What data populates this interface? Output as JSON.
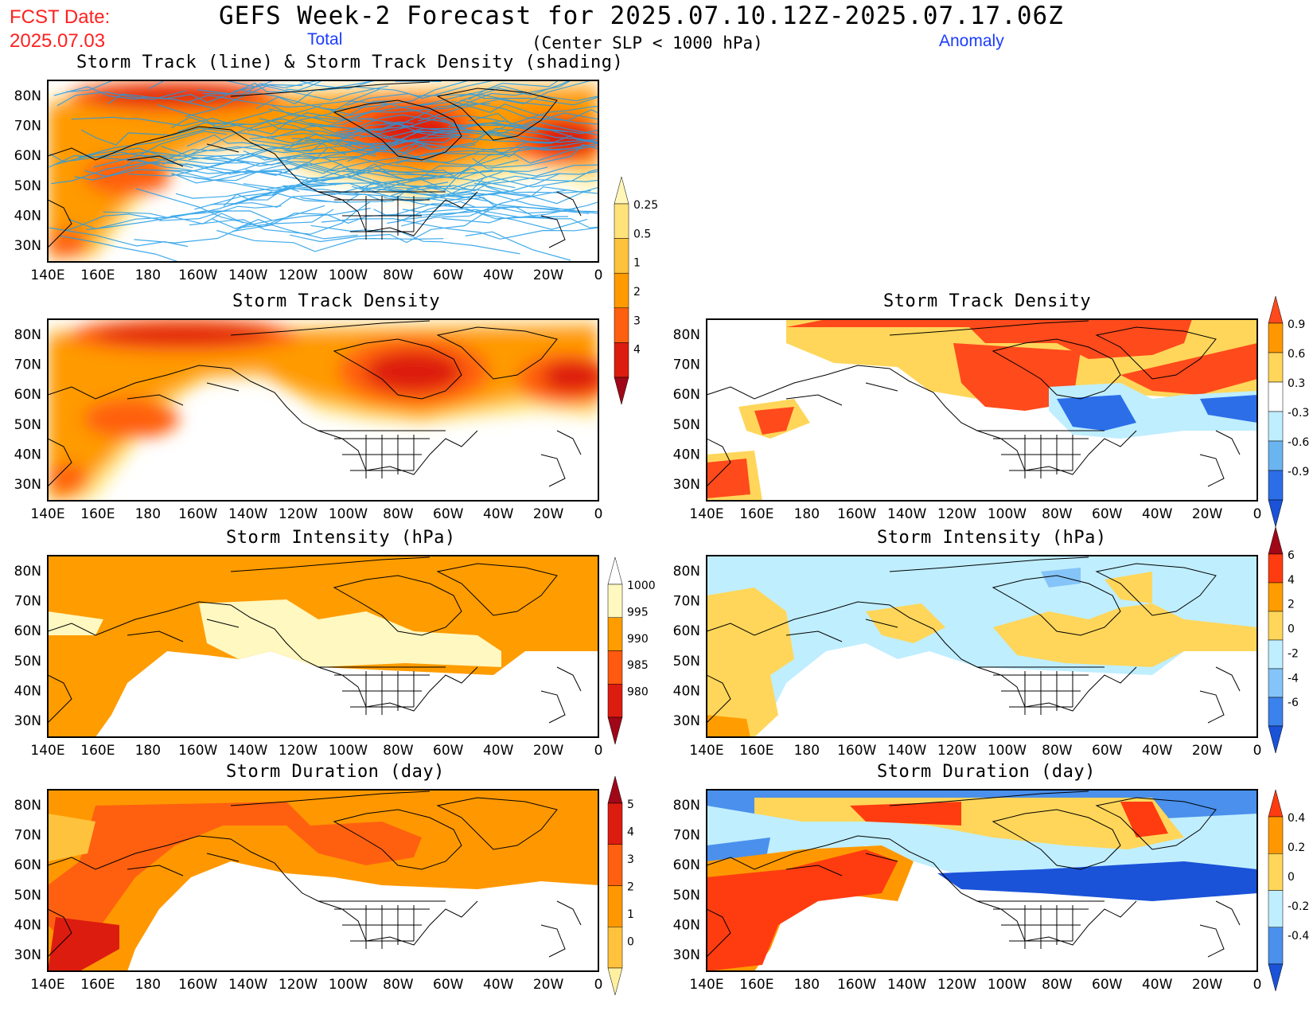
{
  "header": {
    "title": "GEFS Week-2 Forecast for 2025.07.10.12Z-2025.07.17.06Z",
    "fcst_label": "FCST Date:",
    "fcst_date": "2025.07.03",
    "column_total": "Total",
    "column_anomaly": "Anomaly",
    "subtitle": "(Center SLP < 1000 hPa)"
  },
  "axes": {
    "lon_labels": [
      "140E",
      "160E",
      "180",
      "160W",
      "140W",
      "120W",
      "100W",
      "80W",
      "60W",
      "40W",
      "20W",
      "0"
    ],
    "lat_labels": [
      "80N",
      "70N",
      "60N",
      "50N",
      "40N",
      "30N"
    ]
  },
  "panels": [
    {
      "id": "track-total",
      "title": "Storm Track (line) & Storm Track Density (shading)"
    },
    {
      "id": "density-total",
      "title": "Storm Track Density"
    },
    {
      "id": "density-anom",
      "title": "Storm Track Density"
    },
    {
      "id": "intensity-total",
      "title": "Storm Intensity (hPa)"
    },
    {
      "id": "intensity-anom",
      "title": "Storm Intensity (hPa)"
    },
    {
      "id": "duration-total",
      "title": "Storm Duration (day)"
    },
    {
      "id": "duration-anom",
      "title": "Storm Duration (day)"
    }
  ],
  "colorbars": {
    "density_total": {
      "labels": [
        "0.25",
        "0.5",
        "1",
        "2",
        "3",
        "4"
      ],
      "colors": [
        "#fff6b8",
        "#ffe27a",
        "#ffc23c",
        "#ff9a00",
        "#ff6010",
        "#dd1c10",
        "#a00818"
      ]
    },
    "density_anom": {
      "labels": [
        "0.9",
        "0.6",
        "0.3",
        "-0.3",
        "-0.6",
        "-0.9"
      ],
      "colors": [
        "#ff4a1c",
        "#ff9800",
        "#ffd65a",
        "#ffffff",
        "#bfeeff",
        "#6ab4f0",
        "#2c6ee8",
        "#1a52d8"
      ]
    },
    "intensity_total": {
      "labels": [
        "1000",
        "995",
        "990",
        "985",
        "980"
      ],
      "colors": [
        "#ffffff",
        "#fff8c0",
        "#ff9c00",
        "#ff5a10",
        "#dd1c10",
        "#a00818"
      ]
    },
    "intensity_anom": {
      "labels": [
        "6",
        "4",
        "2",
        "0",
        "-2",
        "-4",
        "-6"
      ],
      "colors": [
        "#a00818",
        "#ff3c10",
        "#ff9c00",
        "#ffd65a",
        "#bfeeff",
        "#84c4f8",
        "#3c82ec",
        "#1a52d8"
      ]
    },
    "duration_total": {
      "labels": [
        "5",
        "4",
        "3",
        "2",
        "1",
        "0"
      ],
      "colors": [
        "#a00818",
        "#dd1c10",
        "#ff6010",
        "#ff9800",
        "#ffc23c",
        "#fff0a0"
      ]
    },
    "duration_anom": {
      "labels": [
        "0.4",
        "0.2",
        "0",
        "-0.2",
        "-0.4"
      ],
      "colors": [
        "#ff3c10",
        "#ff9800",
        "#ffd65a",
        "#bfeeff",
        "#4a90ec",
        "#1a52d8"
      ]
    }
  },
  "colors": {
    "track_line": "#1e9ce8",
    "title_red": "#ff2020",
    "label_blue": "#1a3cff"
  }
}
